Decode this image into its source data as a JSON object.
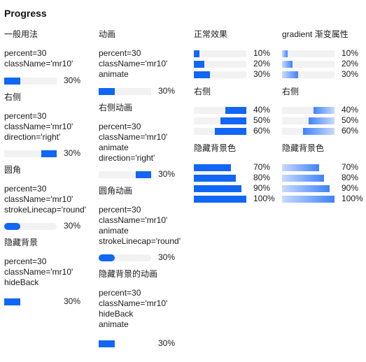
{
  "title": "Progress",
  "colors": {
    "primary": "#1166f5",
    "gradient_light": "#c8daff",
    "gradient_dark": "#3f83f8",
    "track": "#f2f2f2"
  },
  "col1": {
    "basic_title": "一般用法",
    "basic_code": [
      "percent=30",
      "className='mr10'"
    ],
    "basic_percent": 30,
    "basic_label": "30%",
    "right_title": "右侧",
    "right_code": [
      "percent=30",
      "className='mr10'",
      "direction='right'"
    ],
    "right_percent": 30,
    "right_label": "30%",
    "round_title": "圆角",
    "round_code": [
      "percent=30",
      "className='mr10'",
      "strokeLinecap='round'"
    ],
    "round_percent": 30,
    "round_label": "30%",
    "hide_title": "隐藏背景",
    "hide_code": [
      "percent=30",
      "className='mr10'",
      "hideBack"
    ],
    "hide_percent": 30,
    "hide_label": "30%"
  },
  "col2": {
    "anim_title": "动画",
    "anim_code": [
      "percent=30",
      "className='mr10'",
      "animate"
    ],
    "anim_percent": 30,
    "anim_label": "30%",
    "right_anim_title": "右侧动画",
    "right_anim_code": [
      "percent=30",
      "className='mr10'",
      "animate",
      "direction='right'"
    ],
    "right_anim_percent": 30,
    "right_anim_label": "30%",
    "round_anim_title": "圆角动画",
    "round_anim_code": [
      "percent=30",
      "className='mr10'",
      "animate",
      "strokeLinecap='round'"
    ],
    "round_anim_percent": 30,
    "round_anim_label": "30%",
    "hide_anim_title": "隐藏背景的动画",
    "hide_anim_code": [
      "percent=30",
      "className='mr10'",
      "hideBack",
      "animate"
    ],
    "hide_anim_percent": 30,
    "hide_anim_label": "30%"
  },
  "col3": {
    "normal_title": "正常效果",
    "normal_items": [
      {
        "percent": 10,
        "label": "10%"
      },
      {
        "percent": 20,
        "label": "20%"
      },
      {
        "percent": 30,
        "label": "30%"
      }
    ],
    "right_title": "右侧",
    "right_items": [
      {
        "percent": 40,
        "label": "40%"
      },
      {
        "percent": 50,
        "label": "50%"
      },
      {
        "percent": 60,
        "label": "60%"
      }
    ],
    "hide_title": "隐藏背景色",
    "hide_items": [
      {
        "percent": 70,
        "label": "70%"
      },
      {
        "percent": 80,
        "label": "80%"
      },
      {
        "percent": 90,
        "label": "90%"
      },
      {
        "percent": 100,
        "label": "100%"
      }
    ]
  },
  "col4": {
    "gradient_title": "gradient 渐变属性",
    "gradient_items": [
      {
        "percent": 10,
        "label": "10%"
      },
      {
        "percent": 20,
        "label": "20%"
      },
      {
        "percent": 30,
        "label": "30%"
      }
    ],
    "right_title": "右侧",
    "right_items": [
      {
        "percent": 40,
        "label": "40%"
      },
      {
        "percent": 50,
        "label": "50%"
      },
      {
        "percent": 60,
        "label": "60%"
      }
    ],
    "hide_title": "隐藏背景色",
    "hide_items": [
      {
        "percent": 70,
        "label": "70%"
      },
      {
        "percent": 80,
        "label": "80%"
      },
      {
        "percent": 90,
        "label": "90%"
      },
      {
        "percent": 100,
        "label": "100%"
      }
    ]
  }
}
